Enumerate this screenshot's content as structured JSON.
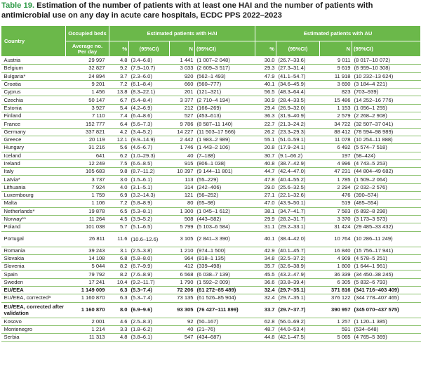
{
  "title": {
    "label": "Table 19.",
    "text": "Estimation of the number of patients with at least one HAI and the number of patients with antimicrobial use on any day in acute care hospitals, ECDC PPS 2022–2023"
  },
  "headers": {
    "country": "Country",
    "occupied": "Occupied beds",
    "hai": "Estimated patients with HAI",
    "au": "Estimated patients with AU",
    "avg": "Average no. Per day",
    "pct": "%",
    "ci95": "(95%CI)",
    "n": "N",
    "ci95n": "(95%CI)"
  },
  "rows": [
    {
      "country": "Austria",
      "occ": "29 997",
      "hp": "4.8",
      "hci": "(3.4–6.8)",
      "hn": "1 441",
      "hnci": "(1 007–2 048)",
      "ap": "30.0",
      "aci": "(26.7–33.6)",
      "an": "9 011",
      "anci": "(8 017–10 072)"
    },
    {
      "country": "Belgium",
      "occ": "32 827",
      "hp": "9.2",
      "hci": "(7.9–10.7)",
      "hn": "3 033",
      "hnci": "(2 609–3 517)",
      "ap": "29.3",
      "aci": "(27.3–31.4)",
      "an": "9 619",
      "anci": "(8 959–10 308)"
    },
    {
      "country": "Bulgaria*",
      "occ": "24 894",
      "hp": "3.7",
      "hci": "(2.3–6.0)",
      "hn": "920",
      "hnci": "(562–1 493)",
      "ap": "47.9",
      "aci": "(41.1–54.7)",
      "an": "11 918",
      "anci": "(10 232–13 624)"
    },
    {
      "country": "Croatia",
      "occ": "9 201",
      "hp": "7.2",
      "hci": "(6.1–8.4)",
      "hn": "660",
      "hnci": "(560–777)",
      "ap": "40.1",
      "aci": "(34.6–45.9)",
      "an": "3 690",
      "anci": "(3 184–4 221)"
    },
    {
      "country": "Cyprus",
      "occ": "1 456",
      "hp": "13.8",
      "hci": "(8.3–22.1)",
      "hn": "201",
      "hnci": "(121–321)",
      "ap": "56.5",
      "aci": "(48.3–64.4)",
      "an": "823",
      "anci": "(703–939)"
    },
    {
      "country": "Czechia",
      "occ": "50 147",
      "hp": "6.7",
      "hci": "(5.4–8.4)",
      "hn": "3 377",
      "hnci": "(2 710–4 194)",
      "ap": "30.9",
      "aci": "(28.4–33.5)",
      "an": "15 486",
      "anci": "(14 252–16 776)"
    },
    {
      "country": "Estonia",
      "occ": "3 927",
      "hp": "5.4",
      "hci": "(4.2–6.9)",
      "hn": "212",
      "hnci": "(166–269)",
      "ap": "29.4",
      "aci": "(26.9–32.0)",
      "an": "1 153",
      "anci": "(1 056–1 255)"
    },
    {
      "country": "Finland",
      "occ": "7 110",
      "hp": "7.4",
      "hci": "(6.4–8.6)",
      "hn": "527",
      "hnci": "(453–613)",
      "ap": "36.3",
      "aci": "(31.9–40.9)",
      "an": "2 579",
      "anci": "(2 268–2 908)"
    },
    {
      "country": "France",
      "occ": "152 777",
      "hp": "6.4",
      "hci": "(5.6–7.3)",
      "hn": "9 786",
      "hnci": "(8 587–11 140)",
      "ap": "22.7",
      "aci": "(21.3–24.2)",
      "an": "34 722",
      "anci": "(32 507–37 041)"
    },
    {
      "country": "Germany",
      "occ": "337 821",
      "hp": "4.2",
      "hci": "(3.4–5.2)",
      "hn": "14 227",
      "hnci": "(11 503–17 566)",
      "ap": "26.2",
      "aci": "(23.3–29.3)",
      "an": "88 412",
      "anci": "(78 594–98 989)"
    },
    {
      "country": "Greece",
      "occ": "20 119",
      "hp": "12.1",
      "hci": "(9.9–14.9)",
      "hn": "2 442",
      "hnci": "(1 983–2 989)",
      "ap": "55.1",
      "aci": "(51.0–59.1)",
      "an": "11 078",
      "anci": "(10 254–11 888)"
    },
    {
      "country": "Hungary",
      "occ": "31 216",
      "hp": "5.6",
      "hci": "(4.6–6.7)",
      "hn": "1 746",
      "hnci": "(1 443–2 106)",
      "ap": "20.8",
      "aci": "(17.9–24.1)",
      "an": "6 492",
      "anci": "(5 574–7 518)"
    },
    {
      "country": "Iceland",
      "occ": "641",
      "hp": "6.2",
      "hci": "(1.0–29.3)",
      "hn": "40",
      "hnci": "(7–188)",
      "ap": "30.7",
      "aci": "(9.1–66.2)",
      "an": "197",
      "anci": "(58–424)"
    },
    {
      "country": "Ireland",
      "occ": "12 249",
      "hp": "7.5",
      "hci": "(6.6–8.5)",
      "hn": "915",
      "hnci": "(806–1 038)",
      "ap": "40.8",
      "aci": "(38.7–42.9)",
      "an": "4 996",
      "anci": "(4 743–5 253)"
    },
    {
      "country": "Italy",
      "occ": "105 683",
      "hp": "9.8",
      "hci": "(8.7–11.2)",
      "hn": "10 397",
      "hnci": "(9 144–11 801)",
      "ap": "44.7",
      "aci": "(42.4–47.0)",
      "an": "47 231",
      "anci": "(44 804–49 682)"
    },
    {
      "country": "Latvia*",
      "occ": "3 737",
      "hp": "3.0",
      "hci": "(1.5–6.1)",
      "hn": "113",
      "hnci": "(55–229)",
      "ap": "47.8",
      "aci": "(40.4–55.2)",
      "an": "1 785",
      "anci": "(1 509–2 064)"
    },
    {
      "country": "Lithuania",
      "occ": "7 924",
      "hp": "4.0",
      "hci": "(3.1–5.1)",
      "hn": "314",
      "hnci": "(242–406)",
      "ap": "29.0",
      "aci": "(25.6–32.5)",
      "an": "2 294",
      "anci": "(2 032–2 576)"
    },
    {
      "country": "Luxembourg",
      "occ": "1 759",
      "hp": "6.9",
      "hci": "(3.2–14.3)",
      "hn": "121",
      "hnci": "(56–252)",
      "ap": "27.1",
      "aci": "(22.1–32.6)",
      "an": "476",
      "anci": "(390–574)"
    },
    {
      "country": "Malta",
      "occ": "1 106",
      "hp": "7.2",
      "hci": "(5.8–8.9)",
      "hn": "80",
      "hnci": "(65–98)",
      "ap": "47.0",
      "aci": "(43.9–50.1)",
      "an": "519",
      "anci": "(485–554)"
    },
    {
      "country": "Netherlands*",
      "occ": "19 878",
      "hp": "6.5",
      "hci": "(5.3–8.1)",
      "hn": "1 300",
      "hnci": "(1 045–1 612)",
      "ap": "38.1",
      "aci": "(34.7–41.7)",
      "an": "7 583",
      "anci": "(6 892–8 298)"
    },
    {
      "country": "Norway**",
      "occ": "11 264",
      "hp": "4.5",
      "hci": "(3.9–5.2)",
      "hn": "508",
      "hnci": "(443–582)",
      "ap": "29.9",
      "aci": "(28.2–31.7)",
      "an": "3 370",
      "anci": "(3 173–3 573)"
    },
    {
      "country": "Poland",
      "occ": "101 038",
      "hp": "5.7",
      "hci": "(5.1–6.5)",
      "hn": "5 799",
      "hnci": "(5 103–6 584)",
      "ap": "31.1",
      "aci": "(29.2–33.1)",
      "an": "31 424",
      "anci": "(29 485–33 432)"
    },
    {
      "country": "Portugal",
      "occ": "26 811",
      "hp": "11.6",
      "hci": "(10.6–12.6)",
      "hn": "3 105",
      "hnci": "(2 841–3 390)",
      "ap": "40.1",
      "aci": "(38.4–42.0)",
      "an": "10 764",
      "anci": "(10 286–11 249)",
      "tall": true
    },
    {
      "country": "Romania",
      "occ": "39 243",
      "hp": "3.1",
      "hci": "(2.5–3.8)",
      "hn": "1 210",
      "hnci": "(974–1 500)",
      "ap": "42.9",
      "aci": "(40.1–45.7)",
      "an": "16 840",
      "anci": "(15 756–17 941)"
    },
    {
      "country": "Slovakia",
      "occ": "14 108",
      "hp": "6.8",
      "hci": "(5.8–8.0)",
      "hn": "964",
      "hnci": "(818–1 135)",
      "ap": "34.8",
      "aci": "(32.5–37.2)",
      "an": "4 909",
      "anci": "(4 578–5 251)"
    },
    {
      "country": "Slovenia",
      "occ": "5 044",
      "hp": "8.2",
      "hci": "(6.7–9.9)",
      "hn": "412",
      "hnci": "(339–498)",
      "ap": "35.7",
      "aci": "(32.6–38.9)",
      "an": "1 800",
      "anci": "(1 644–1 961)"
    },
    {
      "country": "Spain",
      "occ": "79 792",
      "hp": "8.2",
      "hci": "(7.6–8.9)",
      "hn": "6 568",
      "hnci": "(6 038–7 139)",
      "ap": "45.5",
      "aci": "(43.2–47.9)",
      "an": "36 339",
      "anci": "(34 450–38 245)"
    },
    {
      "country": "Sweden",
      "occ": "17 241",
      "hp": "10.4",
      "hci": "(9.2–11.7)",
      "hn": "1 790",
      "hnci": "(1 592–2 009)",
      "ap": "36.6",
      "aci": "(33.8–39.4)",
      "an": "6 305",
      "anci": "(5 832–6 793)"
    },
    {
      "country": "EU/EEA",
      "occ": "1 149 009",
      "hp": "6.3",
      "hci": "(5.3–7.4)",
      "hn": "72 206",
      "hnci": "(61 272–85 489)",
      "ap": "32.4",
      "aci": "(29.7–35.1)",
      "an": "371 816",
      "anci": "(341 716–403 409)",
      "bold": true
    },
    {
      "country": "EU/EEA, correctedᵃ",
      "occ": "1 160 870",
      "hp": "6.3",
      "hci": "(5.3–7.4)",
      "hn": "73 135",
      "hnci": "(61 526–85 904)",
      "ap": "32.4",
      "aci": "(29.7–35.1)",
      "an": "376 122",
      "anci": "(344 778–407 465)"
    },
    {
      "country": "EU/EEA, corrected after validation",
      "occ": "1 160 870",
      "hp": "8.0",
      "hci": "(6.9–9.6)",
      "hn": "93 305",
      "hnci": "(76 427–111 899)",
      "ap": "33.7",
      "aci": "(29.7–37.7)",
      "an": "390 957",
      "anci": "(345 070–437 575)",
      "bold": true,
      "tall": true
    },
    {
      "country": "Kosovo",
      "occ": "2 001",
      "hp": "4.6",
      "hci": "(2.5–8.3)",
      "hn": "92",
      "hnci": "(50–167)",
      "ap": "62.8",
      "aci": "(56.0–69.2)",
      "an": "1 257",
      "anci": "(1 120–1 385)"
    },
    {
      "country": "Montenegro",
      "occ": "1 214",
      "hp": "3.3",
      "hci": "(1.8–6.2)",
      "hn": "40",
      "hnci": "(21–76)",
      "ap": "48.7",
      "aci": "(44.0–53.4)",
      "an": "591",
      "anci": "(534–648)"
    },
    {
      "country": "Serbia",
      "occ": "11 313",
      "hp": "4.8",
      "hci": "(3.8–6.1)",
      "hn": "547",
      "hnci": "(434–687)",
      "ap": "44.8",
      "aci": "(42.1–47.5)",
      "an": "5 065",
      "anci": "(4 765–5 369)"
    }
  ]
}
